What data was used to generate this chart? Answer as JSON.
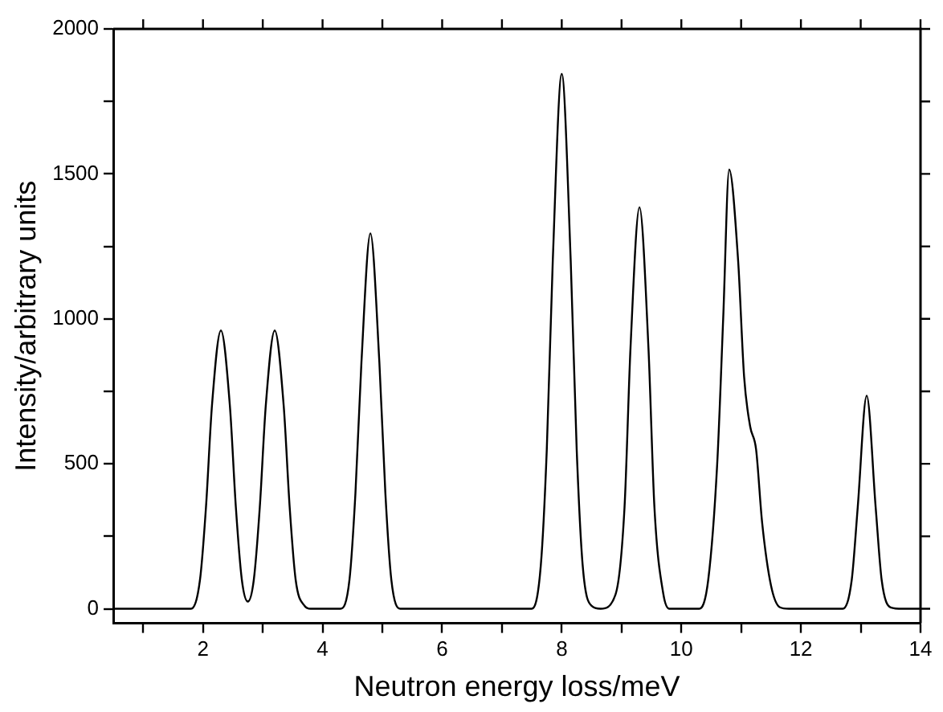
{
  "chart_data": {
    "type": "line",
    "xlabel": "Neutron energy loss/meV",
    "ylabel": "Intensity/arbitrary units",
    "x": [
      0.5,
      1.8,
      1.95,
      2.05,
      2.15,
      2.3,
      2.45,
      2.55,
      2.65,
      2.75,
      2.85,
      2.95,
      3.05,
      3.2,
      3.35,
      3.45,
      3.55,
      3.7,
      3.8,
      4.3,
      4.45,
      4.55,
      4.65,
      4.8,
      4.95,
      5.05,
      5.15,
      5.3,
      7.5,
      7.65,
      7.75,
      7.85,
      8.0,
      8.15,
      8.25,
      8.35,
      8.5,
      8.65,
      8.9,
      9.05,
      9.15,
      9.3,
      9.45,
      9.55,
      9.7,
      9.8,
      10.3,
      10.45,
      10.6,
      10.7,
      10.8,
      10.95,
      11.05,
      11.15,
      11.25,
      11.35,
      11.5,
      11.65,
      11.8,
      12.7,
      12.85,
      12.95,
      13.1,
      13.25,
      13.35,
      13.5,
      13.7,
      14
    ],
    "series": [
      {
        "color": "#000000",
        "values": [
          0,
          0,
          100,
          350,
          700,
          960,
          700,
          350,
          100,
          25,
          100,
          350,
          700,
          960,
          700,
          350,
          100,
          10,
          0,
          0,
          100,
          400,
          850,
          1295,
          850,
          400,
          100,
          0,
          0,
          150,
          550,
          1200,
          1845,
          1200,
          550,
          150,
          10,
          0,
          50,
          350,
          900,
          1385,
          900,
          350,
          50,
          0,
          0,
          100,
          500,
          1000,
          1515,
          1200,
          800,
          630,
          550,
          300,
          80,
          5,
          0,
          0,
          100,
          350,
          735,
          350,
          100,
          5,
          0,
          0
        ]
      }
    ],
    "xlim": [
      0.5,
      14
    ],
    "xticks": [
      {
        "value": 1,
        "label": null
      },
      2,
      {
        "value": 3,
        "label": null
      },
      4,
      {
        "value": 5,
        "label": null
      },
      6,
      {
        "value": 7,
        "label": null
      },
      8,
      {
        "value": 9,
        "label": null
      },
      10,
      {
        "value": 11,
        "label": null
      },
      12,
      {
        "value": 13,
        "label": null
      },
      14
    ],
    "ylim": [
      -50,
      2000
    ],
    "yticks": [
      0,
      {
        "value": 250,
        "label": null
      },
      500,
      {
        "value": 750,
        "label": null
      },
      1000,
      {
        "value": 1250,
        "label": null
      },
      1500,
      {
        "value": 1750,
        "label": null
      },
      2000
    ],
    "grid": false,
    "legend": false,
    "marker": "none",
    "line_style": "solid"
  }
}
